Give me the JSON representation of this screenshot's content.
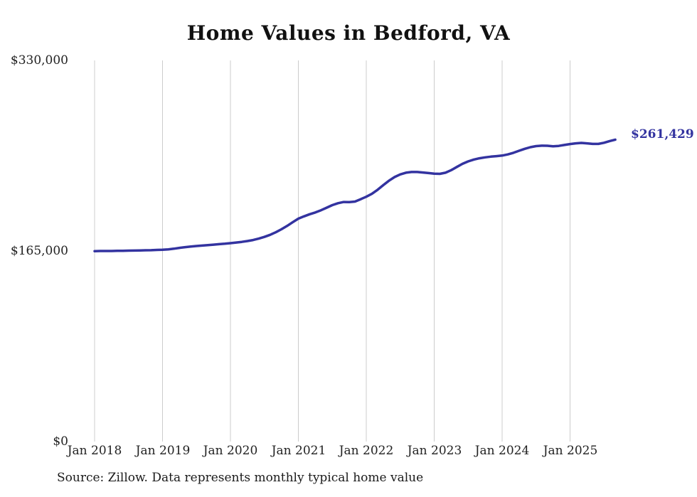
{
  "chart_data": {
    "type": "line",
    "title": "Home Values in Bedford, VA",
    "xlabel": "",
    "ylabel": "",
    "ylim": [
      0,
      330000
    ],
    "y_tick_labels": [
      "$0",
      "$165,000",
      "$330,000"
    ],
    "x_tick_labels": [
      "Jan 2018",
      "Jan 2019",
      "Jan 2020",
      "Jan 2021",
      "Jan 2022",
      "Jan 2023",
      "Jan 2024",
      "Jan 2025"
    ],
    "frequency": "monthly",
    "start_month": "2018-01",
    "end_month": "2025-09",
    "grid": "vertical-only",
    "legend": "none",
    "line_color": "#3333a0",
    "latest_value": 261429,
    "end_label": "$261,429",
    "source_note": "Source: Zillow. Data represents monthly typical home value",
    "series": [
      {
        "name": "Typical home value",
        "values": [
          164900,
          165000,
          165000,
          165000,
          165100,
          165200,
          165300,
          165400,
          165500,
          165600,
          165700,
          165900,
          166100,
          166400,
          167000,
          167700,
          168300,
          168800,
          169300,
          169700,
          170100,
          170500,
          170900,
          171300,
          171800,
          172300,
          172900,
          173600,
          174500,
          175700,
          177200,
          179000,
          181200,
          183800,
          186700,
          189900,
          193000,
          195000,
          196800,
          198400,
          200300,
          202500,
          204700,
          206400,
          207400,
          207300,
          207800,
          209800,
          212000,
          214500,
          218000,
          222000,
          225800,
          229000,
          231300,
          232800,
          233400,
          233400,
          233000,
          232500,
          232000,
          231800,
          232800,
          235000,
          237800,
          240500,
          242600,
          244200,
          245300,
          246100,
          246700,
          247100,
          247600,
          248600,
          250000,
          251800,
          253500,
          254900,
          255800,
          256200,
          256100,
          255700,
          256000,
          256800,
          257600,
          258200,
          258600,
          258200,
          257700,
          257700,
          258700,
          260200,
          261429
        ]
      }
    ]
  }
}
